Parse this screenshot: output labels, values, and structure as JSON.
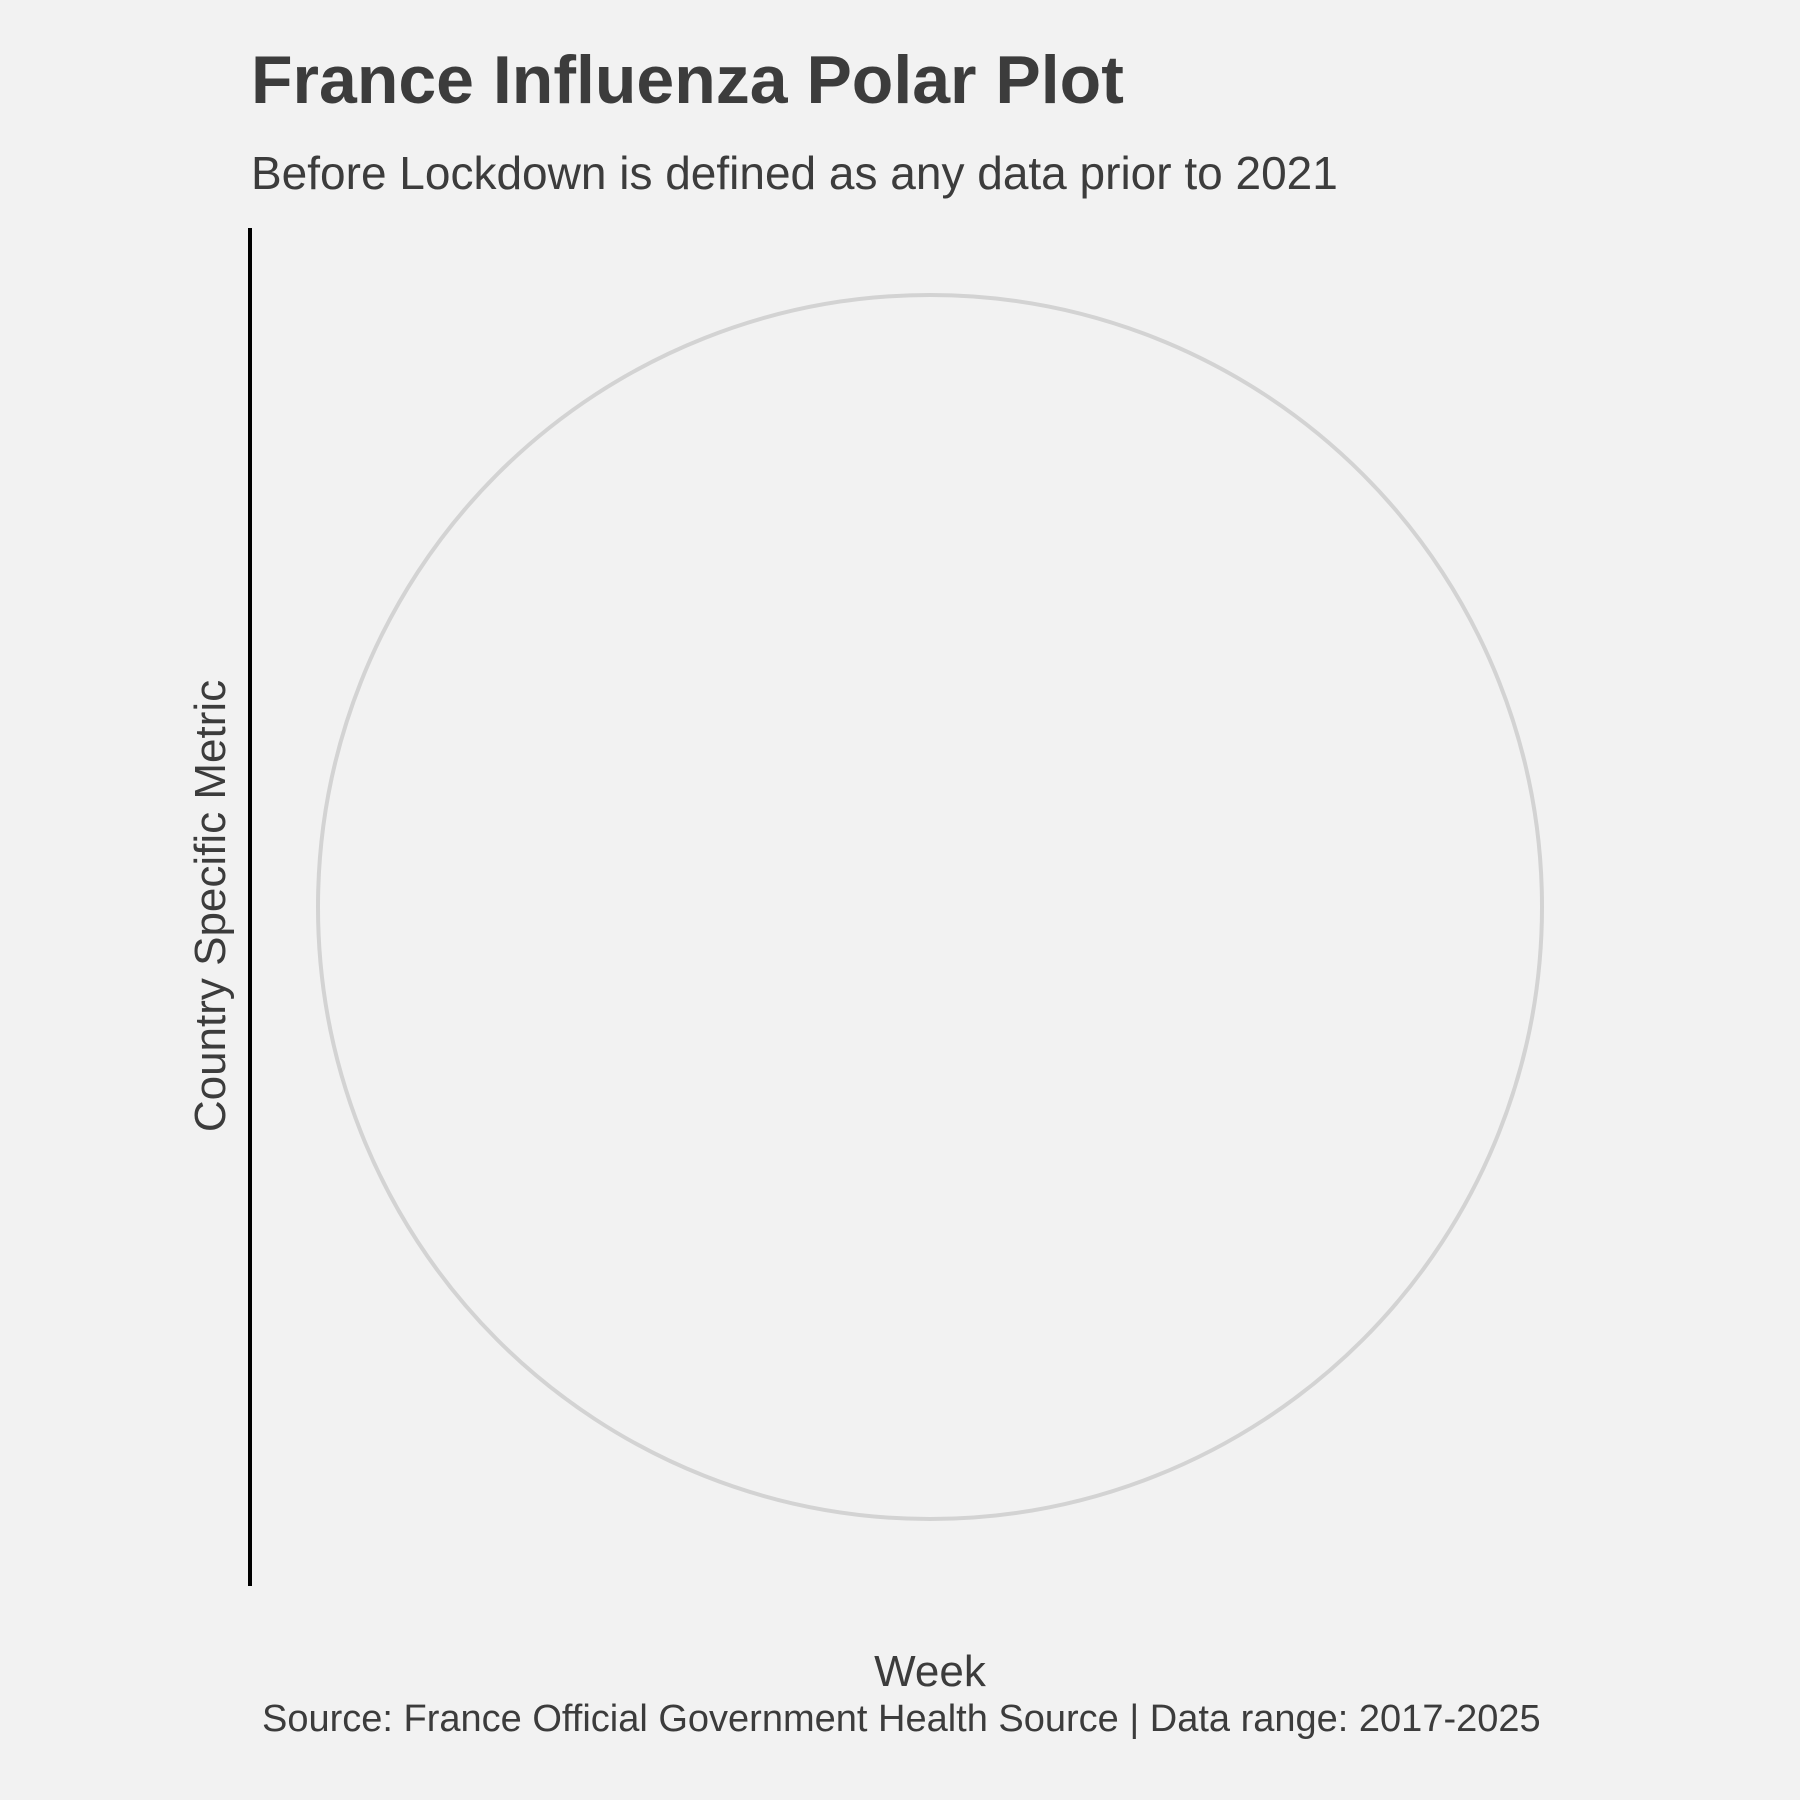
{
  "chart_data": {
    "type": "line",
    "coordinate_system": "polar",
    "title": "France Influenza Polar Plot",
    "subtitle": "Before Lockdown is defined as any data prior to 2021",
    "xlabel": "Week",
    "ylabel": "Country Specific Metric",
    "caption": "Source: France Official Government Health Source | Data range: 2017-2025",
    "series": [],
    "grid": true,
    "colors": {
      "background": "#f2f2f2",
      "grid": "#d3d3d3",
      "axis_line": "#000000",
      "text": "#3c3c3c"
    }
  }
}
